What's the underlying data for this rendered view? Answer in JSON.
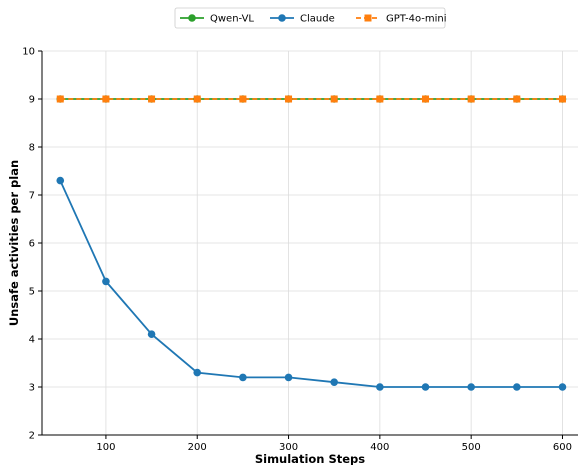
{
  "chart_data": {
    "type": "line",
    "title": "",
    "xlabel": "Simulation Steps",
    "ylabel": "Unsafe activities per plan",
    "x": [
      50,
      100,
      150,
      200,
      250,
      300,
      350,
      400,
      450,
      500,
      550,
      600
    ],
    "xlim": [
      30,
      617
    ],
    "ylim": [
      2,
      10
    ],
    "xticks": [
      100,
      200,
      300,
      400,
      500,
      600
    ],
    "yticks": [
      2,
      3,
      4,
      5,
      6,
      7,
      8,
      9,
      10
    ],
    "grid": true,
    "legend_position": "top-center",
    "series": [
      {
        "name": "Qwen-VL",
        "color": "#2ca02c",
        "marker": "circle",
        "dashed": false,
        "values": [
          9,
          9,
          9,
          9,
          9,
          9,
          9,
          9,
          9,
          9,
          9,
          9
        ]
      },
      {
        "name": "Claude",
        "color": "#1f77b4",
        "marker": "circle",
        "dashed": false,
        "values": [
          7.3,
          5.2,
          4.1,
          3.3,
          3.2,
          3.2,
          3.1,
          3.0,
          3.0,
          3.0,
          3.0,
          3.0
        ]
      },
      {
        "name": "GPT-4o-mini",
        "color": "#ff7f0e",
        "marker": "square",
        "dashed": true,
        "values": [
          9,
          9,
          9,
          9,
          9,
          9,
          9,
          9,
          9,
          9,
          9,
          9
        ]
      }
    ]
  }
}
